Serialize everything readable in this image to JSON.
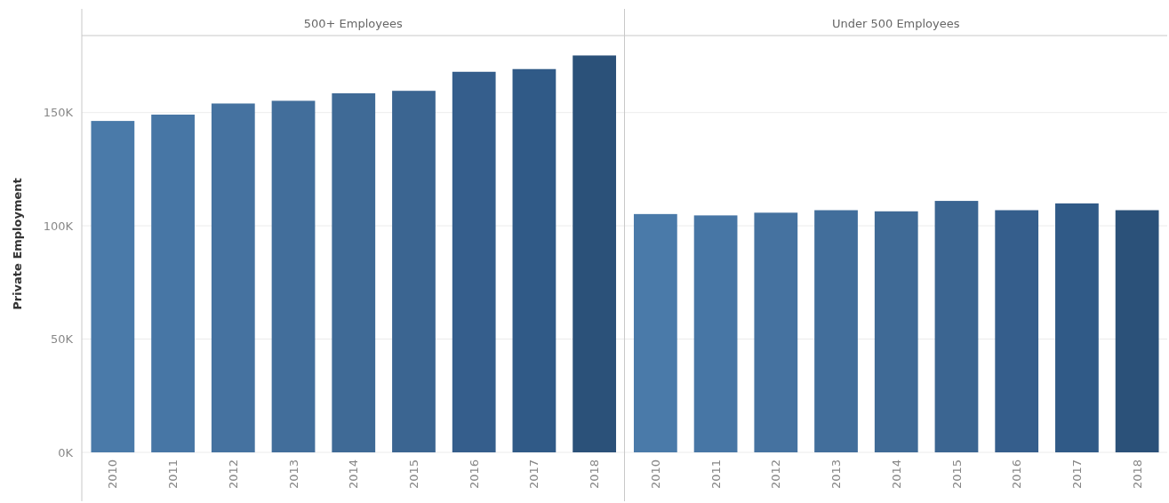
{
  "chart_data": [
    {
      "type": "bar",
      "title": "500+ Employees",
      "ylabel": "Private Employment",
      "categories": [
        "2010",
        "2011",
        "2012",
        "2013",
        "2014",
        "2015",
        "2016",
        "2017",
        "2018"
      ],
      "values": [
        146300,
        149100,
        154000,
        155200,
        158500,
        159600,
        168000,
        169200,
        175200
      ],
      "colors": [
        "#4a7aa9",
        "#4776a5",
        "#4572a0",
        "#426e9b",
        "#3f6a96",
        "#3b6591",
        "#355e8c",
        "#305a87",
        "#2b5179"
      ],
      "ylim": [
        0,
        184000
      ],
      "yticks": [
        {
          "value": 0,
          "label": "0K"
        },
        {
          "value": 50000,
          "label": "50K"
        },
        {
          "value": 100000,
          "label": "100K"
        },
        {
          "value": 150000,
          "label": "150K"
        }
      ],
      "grid": "y"
    },
    {
      "type": "bar",
      "title": "Under 500 Employees",
      "categories": [
        "2010",
        "2011",
        "2012",
        "2013",
        "2014",
        "2015",
        "2016",
        "2017",
        "2018"
      ],
      "values": [
        105200,
        104600,
        105800,
        106900,
        106400,
        111000,
        106900,
        109900,
        106900
      ],
      "colors": [
        "#4a7aa9",
        "#4776a5",
        "#4572a0",
        "#426e9b",
        "#3f6a96",
        "#3b6591",
        "#355e8c",
        "#305a87",
        "#2b5179"
      ],
      "ylim": [
        0,
        184000
      ],
      "grid": "y",
      "tick_labels": "x"
    }
  ]
}
